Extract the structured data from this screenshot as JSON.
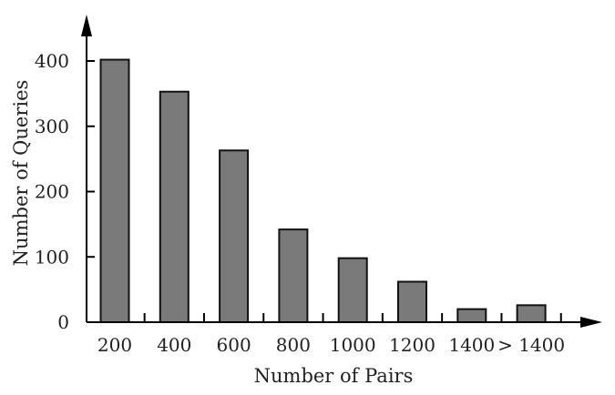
{
  "chart_data": {
    "type": "bar",
    "title": "",
    "categories": [
      "200",
      "400",
      "600",
      "800",
      "1000",
      "1200",
      "1400",
      "> 1400"
    ],
    "values": [
      402,
      353,
      263,
      142,
      98,
      62,
      20,
      26
    ],
    "xlabel": "Number of Pairs",
    "ylabel": "Number of Queries",
    "yticks": [
      "0",
      "100",
      "200",
      "300",
      "400"
    ],
    "ylim": [
      0,
      400
    ],
    "grid": false,
    "legend": "none",
    "bar_color": "#7a7a7a",
    "bar_edge_color": "#111111"
  }
}
